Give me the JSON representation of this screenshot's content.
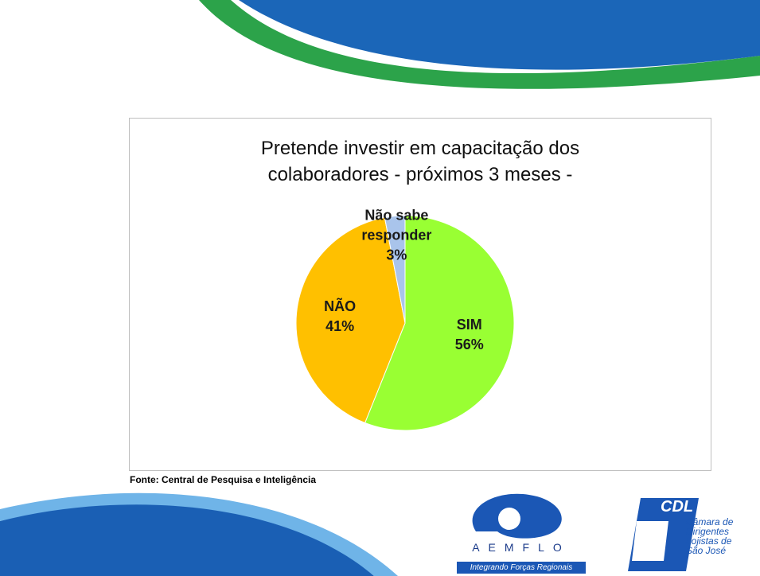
{
  "chart_data": {
    "type": "pie",
    "title": "Pretende investir em capacitação dos colaboradores  - próximos 3 meses -",
    "categories": [
      "SIM",
      "NÃO",
      "Não sabe responder"
    ],
    "values": [
      56,
      41,
      3
    ],
    "value_labels": [
      "56%",
      "41%",
      "3%"
    ],
    "colors": [
      "#99ff33",
      "#ffc000",
      "#a9c4eb"
    ]
  },
  "source": "Fonte: Central de Pesquisa e Inteligência",
  "logos": {
    "aemflo": {
      "name": "AEMFLO",
      "tagline": "Integrando Forças Regionais"
    },
    "cdl": {
      "name": "CDL",
      "text": "Câmara de\nDirigentes\nLojistas de\nSão José"
    }
  }
}
